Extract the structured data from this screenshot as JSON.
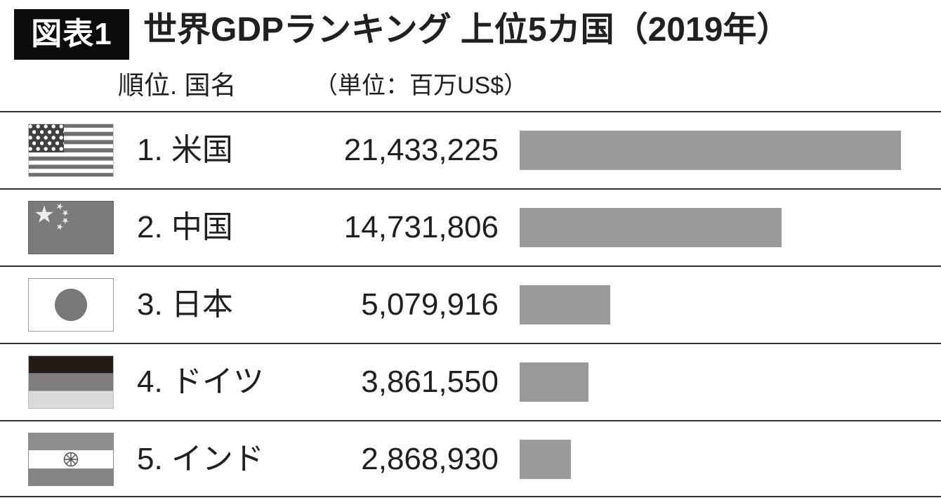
{
  "figure_label": "図表1",
  "title": "世界GDPランキング 上位5カ国（2019年）",
  "column_header": {
    "rank_country": "順位. 国名",
    "unit": "（単位：百万US$）"
  },
  "rows": [
    {
      "rank": "1",
      "country": "米国",
      "label": "1. 米国",
      "value_label": "21,433,225",
      "flag": "usa-flag"
    },
    {
      "rank": "2",
      "country": "中国",
      "label": "2. 中国",
      "value_label": "14,731,806",
      "flag": "china-flag"
    },
    {
      "rank": "3",
      "country": "日本",
      "label": "3. 日本",
      "value_label": "5,079,916",
      "flag": "japan-flag"
    },
    {
      "rank": "4",
      "country": "ドイツ",
      "label": "4. ドイツ",
      "value_label": "3,861,550",
      "flag": "germany-flag"
    },
    {
      "rank": "5",
      "country": "インド",
      "label": "5. インド",
      "value_label": "2,868,930",
      "flag": "india-flag"
    }
  ],
  "chart_data": {
    "type": "bar",
    "orientation": "horizontal",
    "title": "世界GDPランキング 上位5カ国（2019年）",
    "figure_label": "図表1",
    "unit_label": "（単位：百万US$）",
    "unit": "百万US$",
    "year": "2019年",
    "categories": [
      "米国",
      "中国",
      "日本",
      "ドイツ",
      "インド"
    ],
    "ranks": [
      1,
      2,
      3,
      4,
      5
    ],
    "values": [
      21433225,
      14731806,
      5079916,
      3861550,
      2868930
    ],
    "value_labels": [
      "21,433,225",
      "14,731,806",
      "5,079,916",
      "3,861,550",
      "2,868,930"
    ],
    "max_value": 21433225,
    "bar_color": "#9a9a9a",
    "grid": false,
    "legend": false
  }
}
